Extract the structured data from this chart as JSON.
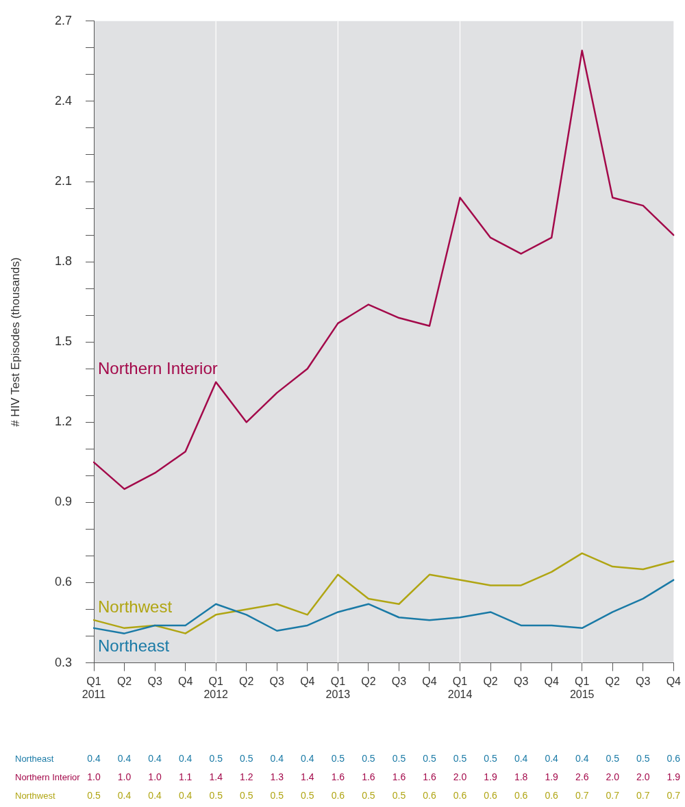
{
  "chart_data": {
    "type": "line",
    "ylabel": "# HIV Test Episodes (thousands)",
    "categories": [
      "Q1\n2011",
      "Q2",
      "Q3",
      "Q4",
      "Q1\n2012",
      "Q2",
      "Q3",
      "Q4",
      "Q1\n2013",
      "Q2",
      "Q3",
      "Q4",
      "Q1\n2014",
      "Q2",
      "Q3",
      "Q4",
      "Q1\n2015",
      "Q2",
      "Q3",
      "Q4"
    ],
    "ylim": [
      0.3,
      2.7
    ],
    "yticks": [
      0.3,
      {
        "value": 0.4,
        "label": null
      },
      {
        "value": 0.5,
        "label": null
      },
      0.6,
      {
        "value": 0.7,
        "label": null
      },
      {
        "value": 0.8,
        "label": null
      },
      0.9,
      {
        "value": 1.0,
        "label": null
      },
      {
        "value": 1.1,
        "label": null
      },
      1.2,
      {
        "value": 1.3,
        "label": null
      },
      {
        "value": 1.4,
        "label": null
      },
      1.5,
      {
        "value": 1.6,
        "label": null
      },
      {
        "value": 1.7,
        "label": null
      },
      1.8,
      {
        "value": 1.9,
        "label": null
      },
      {
        "value": 2.0,
        "label": null
      },
      2.1,
      {
        "value": 2.2,
        "label": null
      },
      {
        "value": 2.3,
        "label": null
      },
      2.4,
      {
        "value": 2.5,
        "label": null
      },
      {
        "value": 2.6,
        "label": null
      },
      2.7
    ],
    "grid": false,
    "legend": false,
    "marker": "none",
    "line_style": "solid",
    "ref_lines": [
      {
        "axis": "x",
        "value": "Q1\n2012",
        "color": "#ffffff"
      },
      {
        "axis": "x",
        "value": "Q1\n2013",
        "color": "#ffffff"
      },
      {
        "axis": "x",
        "value": "Q1\n2014",
        "color": "#ffffff"
      },
      {
        "axis": "x",
        "value": "Q1\n2015",
        "color": "#ffffff"
      }
    ],
    "series": [
      {
        "name": "Northeast",
        "color": "#1a7aa6",
        "values": [
          0.43,
          0.41,
          0.44,
          0.44,
          0.52,
          0.48,
          0.42,
          0.44,
          0.49,
          0.52,
          0.47,
          0.46,
          0.47,
          0.49,
          0.44,
          0.44,
          0.43,
          0.49,
          0.54,
          0.61
        ],
        "value_labels": [
          "0.4",
          "0.4",
          "0.4",
          "0.4",
          "0.5",
          "0.5",
          "0.4",
          "0.4",
          "0.5",
          "0.5",
          "0.5",
          "0.5",
          "0.5",
          "0.5",
          "0.4",
          "0.4",
          "0.4",
          "0.5",
          "0.5",
          "0.6"
        ]
      },
      {
        "name": "Northern Interior",
        "color": "#a3094a",
        "values": [
          1.05,
          0.95,
          1.01,
          1.09,
          1.35,
          1.2,
          1.31,
          1.4,
          1.57,
          1.64,
          1.59,
          1.56,
          2.04,
          1.89,
          1.83,
          1.89,
          2.59,
          2.04,
          2.01,
          1.9
        ],
        "value_labels": [
          "1.0",
          "1.0",
          "1.0",
          "1.1",
          "1.4",
          "1.2",
          "1.3",
          "1.4",
          "1.6",
          "1.6",
          "1.6",
          "1.6",
          "2.0",
          "1.9",
          "1.8",
          "1.9",
          "2.6",
          "2.0",
          "2.0",
          "1.9"
        ]
      },
      {
        "name": "Northwest",
        "color": "#b0a513",
        "values": [
          0.46,
          0.43,
          0.44,
          0.41,
          0.48,
          0.5,
          0.52,
          0.48,
          0.63,
          0.54,
          0.52,
          0.63,
          0.61,
          0.59,
          0.59,
          0.64,
          0.71,
          0.66,
          0.65,
          0.68
        ],
        "value_labels": [
          "0.5",
          "0.4",
          "0.4",
          "0.4",
          "0.5",
          "0.5",
          "0.5",
          "0.5",
          "0.6",
          "0.5",
          "0.5",
          "0.6",
          "0.6",
          "0.6",
          "0.6",
          "0.6",
          "0.7",
          "0.7",
          "0.7",
          "0.7"
        ]
      }
    ]
  }
}
